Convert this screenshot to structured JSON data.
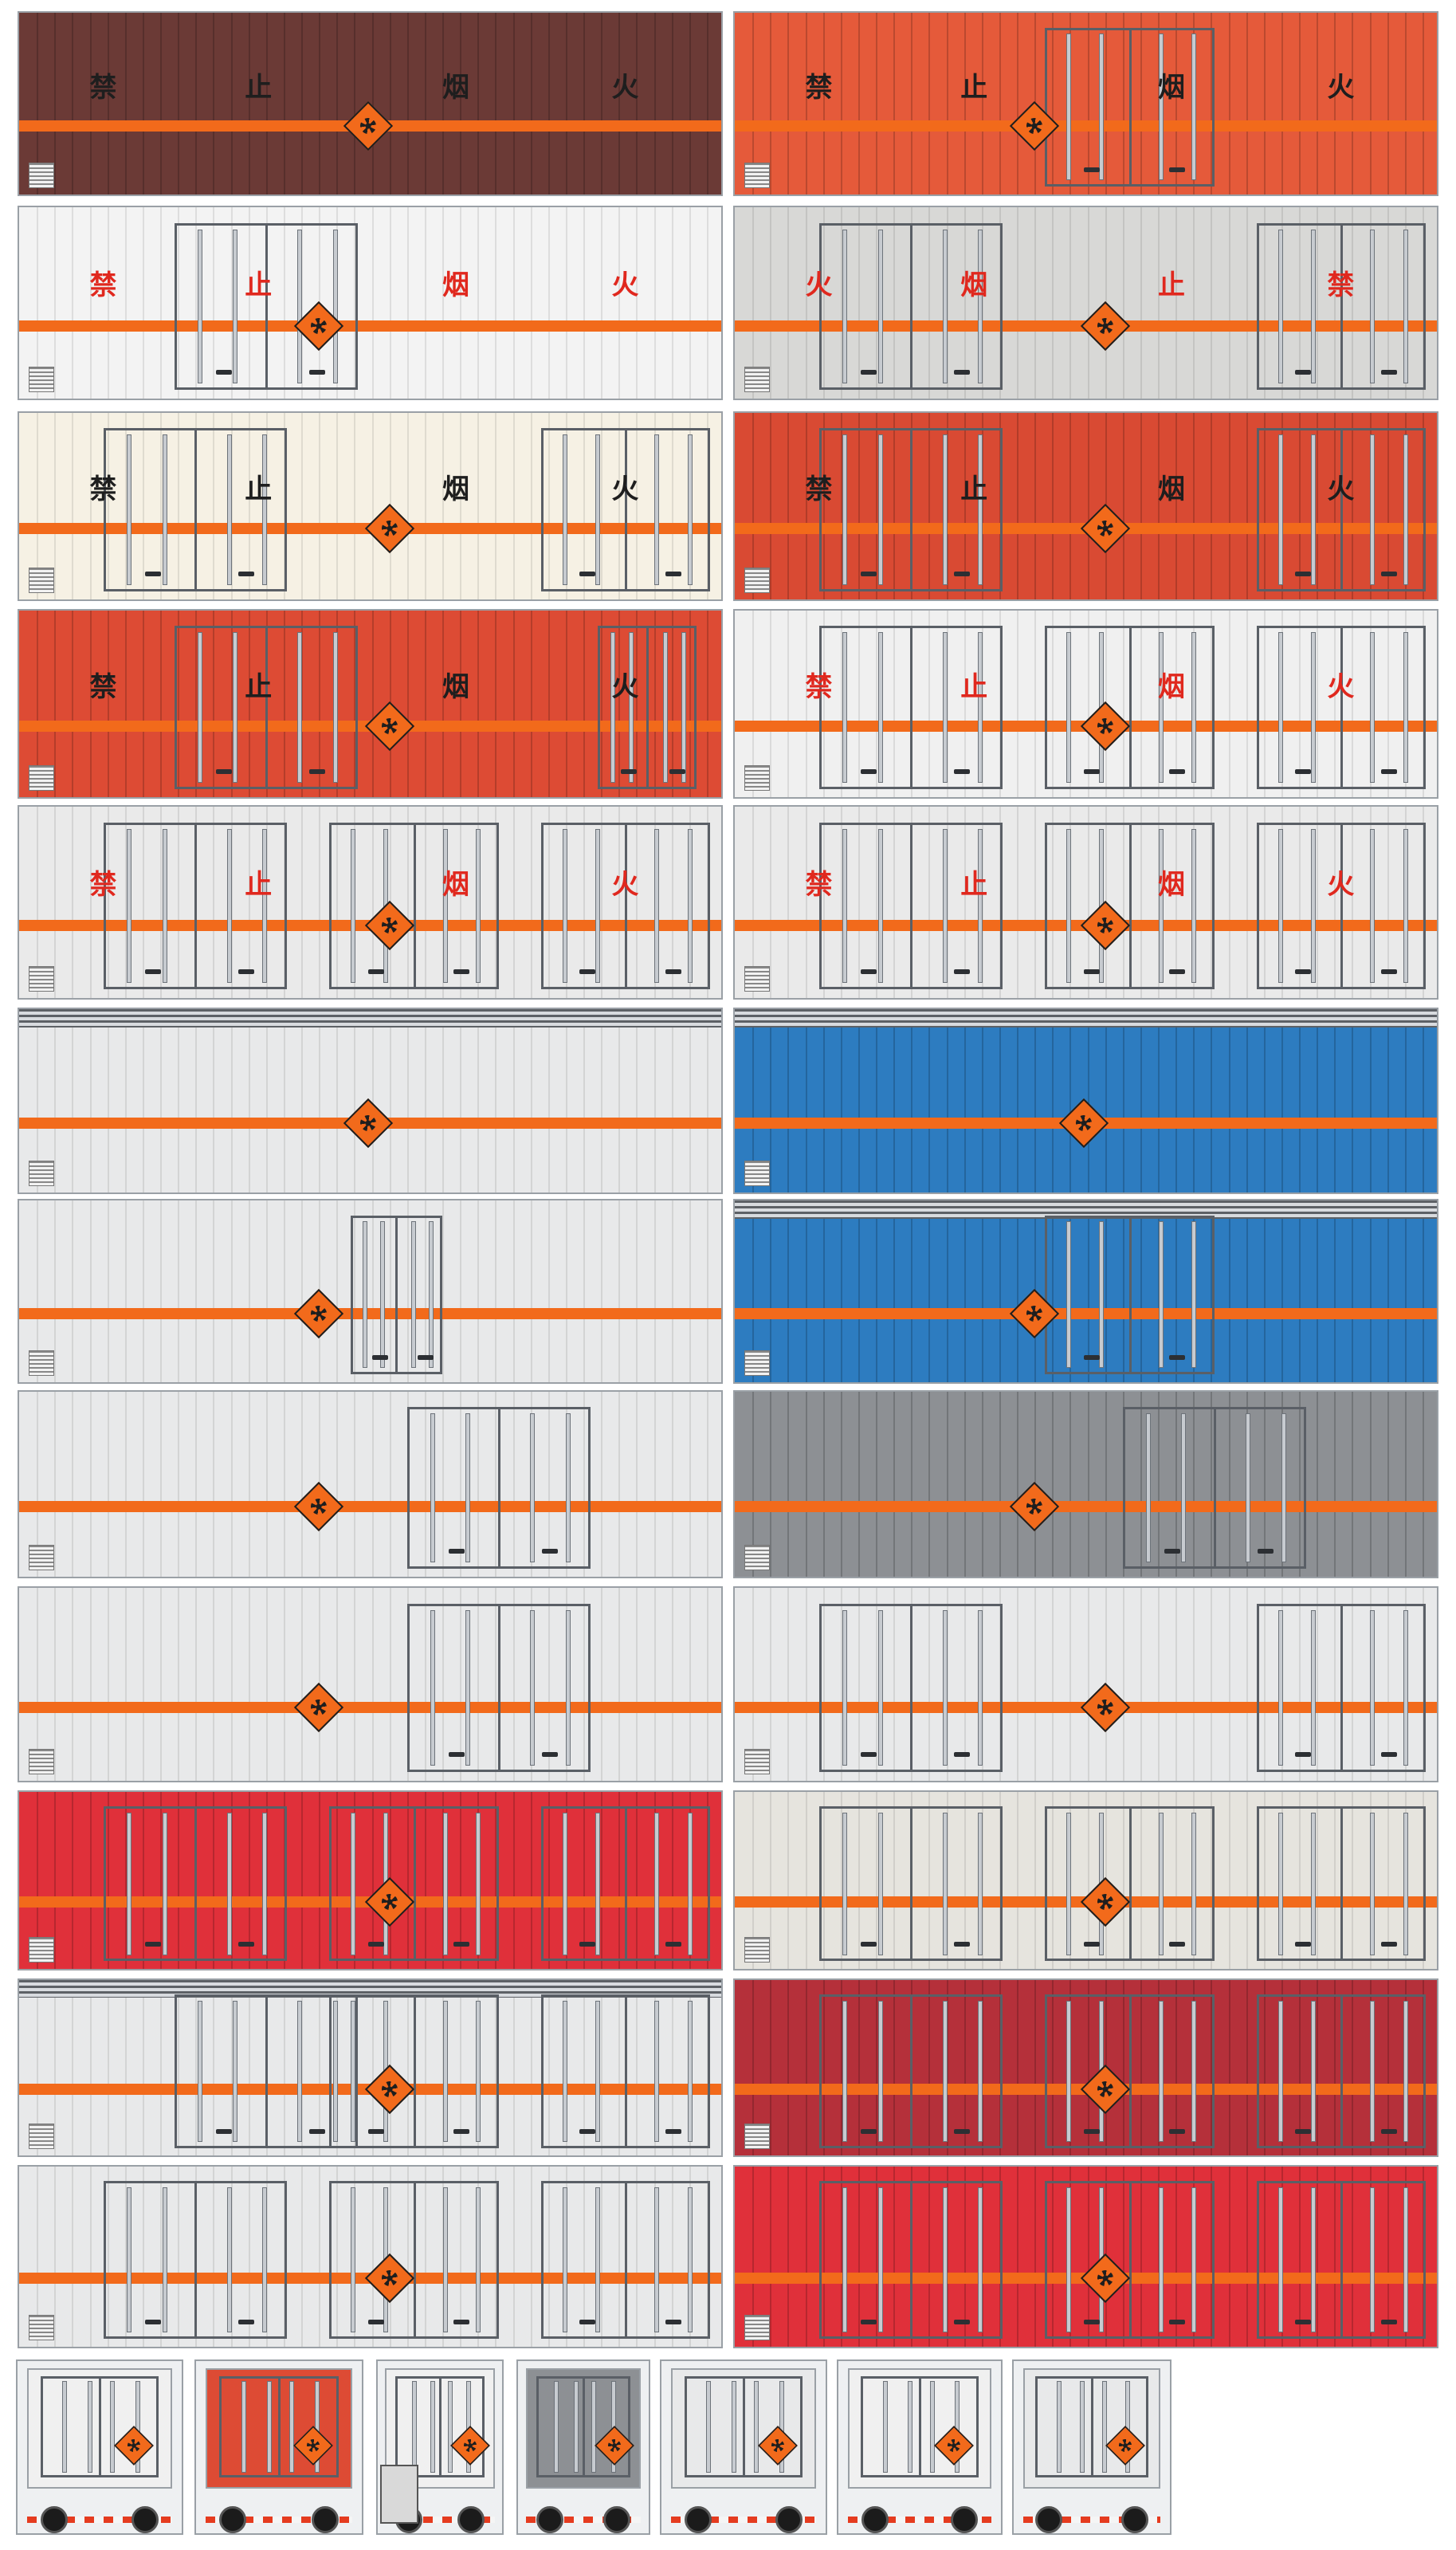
{
  "sign_text": {
    "forward": [
      "禁",
      "止",
      "烟",
      "火"
    ],
    "reverse": [
      "火",
      "烟",
      "止",
      "禁"
    ]
  },
  "colors": {
    "maroon": "#6b3a36",
    "red_orange": "#e55a3a",
    "white": "#f3f3f3",
    "light_gray": "#d8d8d6",
    "cream": "#f6f1e4",
    "brick_red": "#d94a33",
    "warm_red": "#dd4b34",
    "near_white": "#f0f0f0",
    "pale_gray": "#eaeaea",
    "silver": "#e8e9ea",
    "blue": "#2d7cc0",
    "steel_gray": "#8d9094",
    "bright_red": "#e0303a",
    "beige_gray": "#e6e4de",
    "dark_red": "#b5303a",
    "sign_red": "#e0281e",
    "sign_dark": "#1e1e1e",
    "stripe_orange": "#f26a1b",
    "stripe_white": "#ffffff"
  },
  "icons": {
    "placard": "explosive-hazard-placard-icon",
    "plate": "nameplate-icon"
  },
  "side_panels": [
    {
      "name": "panel-01",
      "color": "maroon",
      "sign": "forward",
      "sign_color": "sign_dark",
      "doors": [],
      "placard": true
    },
    {
      "name": "panel-02",
      "color": "red_orange",
      "sign": "forward",
      "sign_color": "sign_dark",
      "doors": [
        {
          "pos": "center"
        }
      ],
      "placard": true
    },
    {
      "name": "panel-03",
      "color": "white",
      "sign": "forward",
      "sign_color": "sign_red",
      "doors": [
        {
          "pos": "center-left"
        }
      ],
      "placard": true
    },
    {
      "name": "panel-04",
      "color": "light_gray",
      "sign": "reverse",
      "sign_color": "sign_red",
      "doors": [
        {
          "pos": "left"
        },
        {
          "pos": "right"
        }
      ],
      "placard": true
    },
    {
      "name": "panel-05",
      "color": "cream",
      "sign": "forward",
      "sign_color": "sign_dark",
      "doors": [
        {
          "pos": "left"
        },
        {
          "pos": "right"
        }
      ],
      "placard": true
    },
    {
      "name": "panel-06",
      "color": "brick_red",
      "sign": "forward",
      "sign_color": "sign_dark",
      "doors": [
        {
          "pos": "left"
        },
        {
          "pos": "right"
        }
      ],
      "placard": true
    },
    {
      "name": "panel-07",
      "color": "warm_red",
      "sign": "forward",
      "sign_color": "sign_dark",
      "doors": [
        {
          "pos": "center-left"
        },
        {
          "pos": "far-right"
        }
      ],
      "placard": true
    },
    {
      "name": "panel-08",
      "color": "near_white",
      "sign": "forward",
      "sign_color": "sign_red",
      "doors": [
        {
          "pos": "left"
        },
        {
          "pos": "center"
        },
        {
          "pos": "right"
        }
      ],
      "placard": true
    },
    {
      "name": "panel-09",
      "color": "pale_gray",
      "sign": "forward",
      "sign_color": "sign_red",
      "doors": [
        {
          "pos": "left"
        },
        {
          "pos": "center"
        },
        {
          "pos": "right"
        }
      ],
      "placard": true
    },
    {
      "name": "panel-10",
      "color": "pale_gray",
      "sign": "forward",
      "sign_color": "sign_red",
      "doors": [
        {
          "pos": "left"
        },
        {
          "pos": "center"
        },
        {
          "pos": "right"
        }
      ],
      "placard": true
    },
    {
      "name": "panel-11",
      "color": "silver",
      "sign": null,
      "doors": [],
      "louver": true,
      "placard": true
    },
    {
      "name": "panel-12",
      "color": "blue",
      "sign": null,
      "doors": [],
      "louver": true,
      "placard": true
    },
    {
      "name": "panel-13",
      "color": "silver",
      "sign": null,
      "doors": [
        {
          "pos": "center-small"
        }
      ],
      "placard": true
    },
    {
      "name": "panel-14",
      "color": "blue",
      "sign": null,
      "doors": [
        {
          "pos": "center"
        }
      ],
      "louver": true,
      "placard": true
    },
    {
      "name": "panel-15",
      "color": "silver",
      "sign": null,
      "doors": [
        {
          "pos": "center-right"
        }
      ],
      "placard": true
    },
    {
      "name": "panel-16",
      "color": "steel_gray",
      "sign": null,
      "doors": [
        {
          "pos": "center-right"
        }
      ],
      "placard": true
    },
    {
      "name": "panel-17",
      "color": "silver",
      "sign": null,
      "doors": [
        {
          "pos": "center-right"
        }
      ],
      "placard": true
    },
    {
      "name": "panel-18",
      "color": "silver",
      "sign": null,
      "doors": [
        {
          "pos": "left"
        },
        {
          "pos": "right"
        }
      ],
      "placard": true
    },
    {
      "name": "panel-19",
      "color": "bright_red",
      "sign": null,
      "doors": [
        {
          "pos": "left"
        },
        {
          "pos": "center"
        },
        {
          "pos": "right"
        }
      ],
      "placard": true
    },
    {
      "name": "panel-20",
      "color": "beige_gray",
      "sign": null,
      "doors": [
        {
          "pos": "left"
        },
        {
          "pos": "center"
        },
        {
          "pos": "right"
        }
      ],
      "placard": true
    },
    {
      "name": "panel-21",
      "color": "silver",
      "sign": null,
      "doors": [
        {
          "pos": "center-left"
        },
        {
          "pos": "center"
        },
        {
          "pos": "right"
        }
      ],
      "louver": true,
      "placard": true
    },
    {
      "name": "panel-22",
      "color": "dark_red",
      "sign": null,
      "doors": [
        {
          "pos": "left"
        },
        {
          "pos": "center"
        },
        {
          "pos": "right"
        }
      ],
      "placard": true
    },
    {
      "name": "panel-23",
      "color": "silver",
      "sign": null,
      "doors": [
        {
          "pos": "left"
        },
        {
          "pos": "center"
        },
        {
          "pos": "right"
        }
      ],
      "placard": true
    },
    {
      "name": "panel-24",
      "color": "bright_red",
      "sign": null,
      "doors": [
        {
          "pos": "left"
        },
        {
          "pos": "center"
        },
        {
          "pos": "right"
        }
      ],
      "placard": true
    }
  ],
  "rear_views": [
    {
      "name": "rear-view-1",
      "color": "near_white",
      "kind": "rear"
    },
    {
      "name": "rear-view-2",
      "color": "warm_red",
      "kind": "rear"
    },
    {
      "name": "rear-view-3",
      "color": "near_white",
      "kind": "side-cab"
    },
    {
      "name": "rear-view-4",
      "color": "steel_gray",
      "kind": "rear-road"
    },
    {
      "name": "rear-view-5",
      "color": "silver",
      "kind": "rear"
    },
    {
      "name": "rear-view-6",
      "color": "near_white",
      "kind": "rear"
    },
    {
      "name": "rear-view-7",
      "color": "silver",
      "kind": "rear"
    }
  ]
}
